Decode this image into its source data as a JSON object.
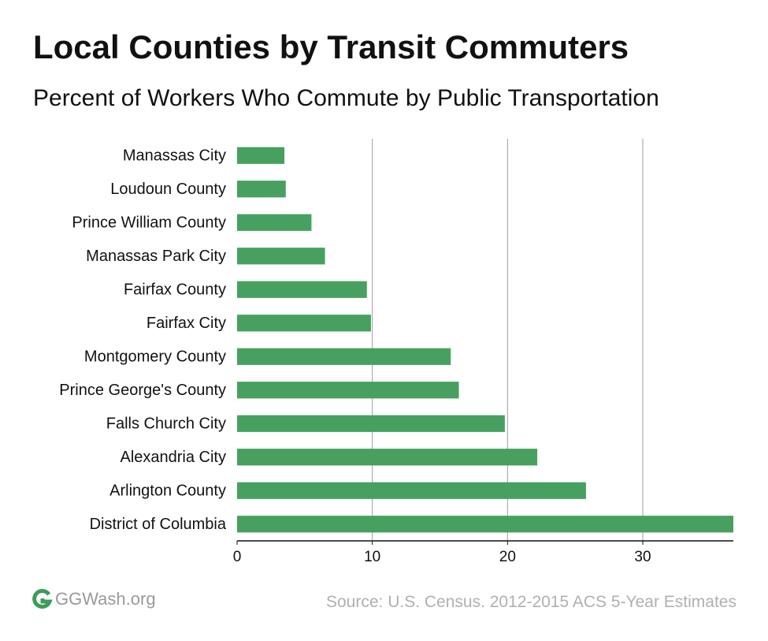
{
  "header": {
    "title": "Local Counties by Transit Commuters",
    "subtitle": "Percent of Workers Who Commute by Public Transportation"
  },
  "footer": {
    "logo_text": "GGWash.org",
    "logo_icon": "ggwash-logo-icon",
    "source": "Source: U.S. Census. 2012-2015 ACS 5-Year Estimates"
  },
  "colors": {
    "bar": "#47a05f",
    "grid": "#9e9e9e",
    "logo": "#3f9a5a"
  },
  "chart_data": {
    "type": "bar",
    "orientation": "horizontal",
    "categories": [
      "Manassas City",
      "Loudoun County",
      "Prince William County",
      "Manassas Park City",
      "Fairfax County",
      "Fairfax City",
      "Montgomery County",
      "Prince George's County",
      "Falls Church City",
      "Alexandria City",
      "Arlington County",
      "District of Columbia"
    ],
    "values": [
      3.5,
      3.6,
      5.5,
      6.5,
      9.6,
      9.9,
      15.8,
      16.4,
      19.8,
      22.2,
      25.8,
      36.7
    ],
    "xticks": [
      0,
      10,
      20,
      30
    ],
    "xlim": [
      0,
      36.7
    ],
    "grid": true,
    "title": "Local Counties by Transit Commuters",
    "subtitle": "Percent of Workers Who Commute by Public Transportation",
    "xlabel": "",
    "ylabel": ""
  }
}
